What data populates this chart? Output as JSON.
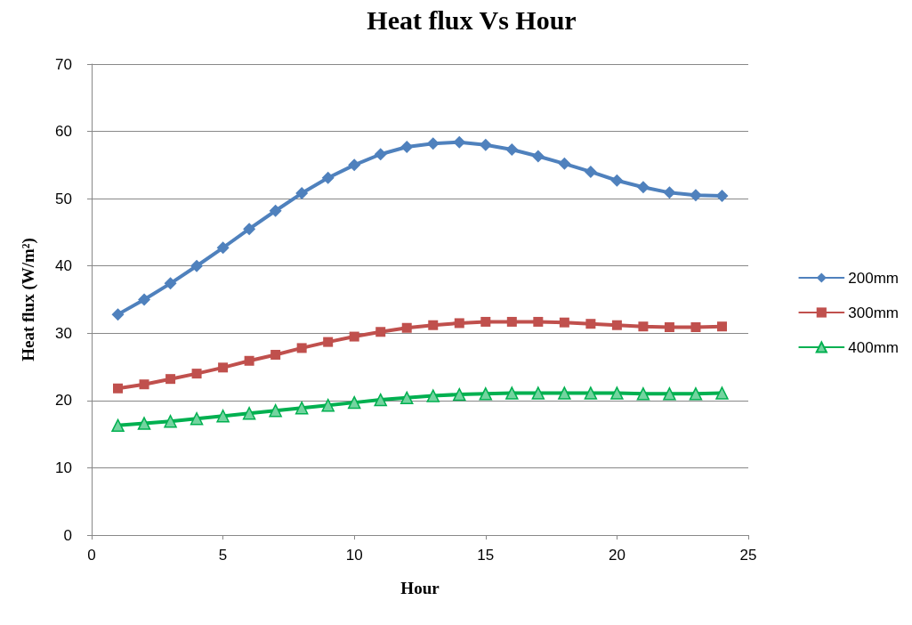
{
  "chart_data": {
    "type": "line",
    "title": "Heat flux Vs Hour",
    "xlabel": "Hour",
    "ylabel": "Heat flux (W/m²)",
    "x": [
      1,
      2,
      3,
      4,
      5,
      6,
      7,
      8,
      9,
      10,
      11,
      12,
      13,
      14,
      15,
      16,
      17,
      18,
      19,
      20,
      21,
      22,
      23,
      24
    ],
    "series": [
      {
        "name": "200mm",
        "color": "#4f81bd",
        "marker": "diamond",
        "values": [
          32.8,
          35.0,
          37.4,
          40.0,
          42.7,
          45.5,
          48.2,
          50.8,
          53.1,
          55.0,
          56.6,
          57.7,
          58.2,
          58.4,
          58.0,
          57.3,
          56.3,
          55.2,
          54.0,
          52.7,
          51.7,
          50.9,
          50.5,
          50.4
        ]
      },
      {
        "name": "300mm",
        "color": "#c0504d",
        "marker": "square",
        "values": [
          21.8,
          22.4,
          23.2,
          24.0,
          24.9,
          25.9,
          26.8,
          27.8,
          28.7,
          29.5,
          30.2,
          30.8,
          31.2,
          31.5,
          31.7,
          31.7,
          31.7,
          31.6,
          31.4,
          31.2,
          31.0,
          30.9,
          30.9,
          31.0
        ]
      },
      {
        "name": "400mm",
        "color": "#00b050",
        "marker": "triangle",
        "values": [
          16.3,
          16.6,
          16.9,
          17.3,
          17.7,
          18.1,
          18.5,
          18.9,
          19.3,
          19.7,
          20.1,
          20.4,
          20.7,
          20.9,
          21.0,
          21.1,
          21.1,
          21.1,
          21.1,
          21.1,
          21.0,
          21.0,
          21.0,
          21.1
        ]
      }
    ],
    "xlim": [
      0,
      25
    ],
    "xticks": [
      0,
      5,
      10,
      15,
      20,
      25
    ],
    "ylim": [
      0,
      70
    ],
    "yticks": [
      0,
      10,
      20,
      30,
      40,
      50,
      60,
      70
    ],
    "grid": "y",
    "legend": "right",
    "line_style": "solid"
  }
}
